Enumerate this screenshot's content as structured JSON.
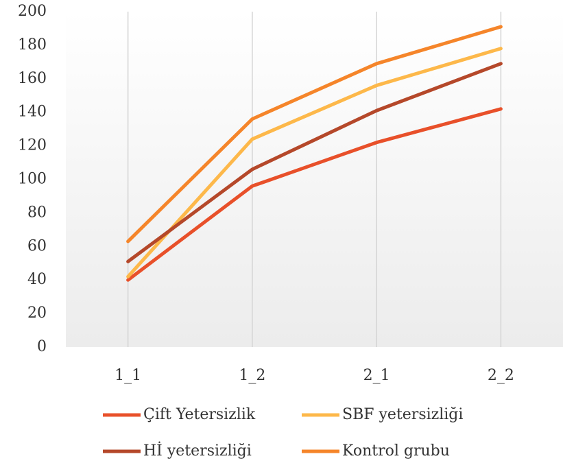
{
  "chart_data": {
    "type": "line",
    "categories": [
      "1_1",
      "1_2",
      "2_1",
      "2_2"
    ],
    "series": [
      {
        "name": "Çift Yetersizlik",
        "color": "#e8502a",
        "values": [
          40,
          96,
          122,
          142
        ]
      },
      {
        "name": "SBF yetersizliği",
        "color": "#fdb84a",
        "values": [
          42,
          124,
          156,
          178
        ]
      },
      {
        "name": "Hİ yetersizliği",
        "color": "#b5482a",
        "values": [
          51,
          106,
          141,
          169
        ]
      },
      {
        "name": "Kontrol grubu",
        "color": "#f5852a",
        "values": [
          63,
          136,
          169,
          191
        ]
      }
    ],
    "ylim": [
      0,
      200
    ],
    "yticks": [
      0,
      20,
      40,
      60,
      80,
      100,
      120,
      140,
      160,
      180,
      200
    ],
    "grid": "vertical",
    "legend": "bottom"
  }
}
